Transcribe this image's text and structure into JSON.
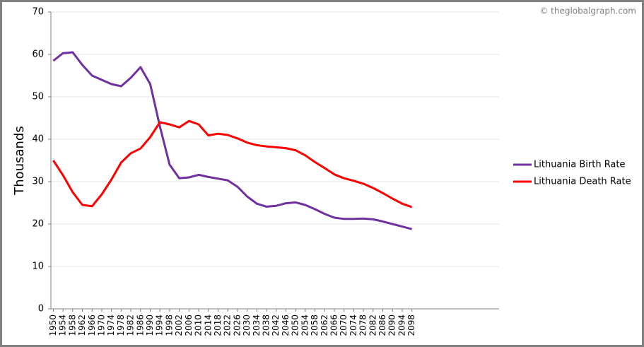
{
  "chart_data": {
    "type": "line",
    "y_label": "Thousands",
    "watermark": "© theglobalgraph.com",
    "x": [
      1950,
      1954,
      1958,
      1962,
      1966,
      1970,
      1974,
      1978,
      1982,
      1986,
      1990,
      1994,
      1998,
      2002,
      2006,
      2010,
      2014,
      2018,
      2022,
      2026,
      2030,
      2034,
      2038,
      2042,
      2046,
      2050,
      2054,
      2058,
      2062,
      2066,
      2070,
      2074,
      2078,
      2082,
      2086,
      2090,
      2094,
      2098
    ],
    "series": [
      {
        "name": "Lithuania Birth Rate",
        "color": "#7030a0",
        "values": [
          58.5,
          60.3,
          60.5,
          57.5,
          55,
          54,
          53,
          52.5,
          54.5,
          57,
          53,
          43,
          34,
          30.8,
          31,
          31.6,
          31.1,
          30.7,
          30.3,
          28.8,
          26.5,
          24.8,
          24.1,
          24.3,
          24.9,
          25.1,
          24.5,
          23.5,
          22.4,
          21.5,
          21.2,
          21.2,
          21.3,
          21.1,
          20.6,
          20,
          19.4,
          18.8
        ]
      },
      {
        "name": "Lithuania Death Rate",
        "color": "#ff0000",
        "values": [
          35,
          31.5,
          27.5,
          24.5,
          24.2,
          27,
          30.5,
          34.5,
          36.7,
          37.8,
          40.5,
          44,
          43.5,
          42.8,
          44.3,
          43.5,
          40.9,
          41.3,
          41,
          40.2,
          39.2,
          38.6,
          38.3,
          38.1,
          37.9,
          37.4,
          36.2,
          34.6,
          33.2,
          31.7,
          30.8,
          30.2,
          29.5,
          28.5,
          27.3,
          26,
          24.8,
          24
        ]
      }
    ],
    "xlim": [
      1949,
      2134
    ],
    "xticks": [
      1950,
      1954,
      1958,
      1962,
      1966,
      1970,
      1974,
      1978,
      1982,
      1986,
      1990,
      1994,
      1998,
      2002,
      2006,
      2010,
      2014,
      2018,
      2022,
      2026,
      2030,
      2034,
      2038,
      2042,
      2046,
      2050,
      2054,
      2058,
      2062,
      2066,
      2070,
      2074,
      2078,
      2082,
      2086,
      2090,
      2094,
      2098
    ],
    "ylim": [
      0,
      70
    ],
    "yticks": [
      0,
      10,
      20,
      30,
      40,
      50,
      60,
      70
    ],
    "grid": true,
    "legend": "right"
  }
}
